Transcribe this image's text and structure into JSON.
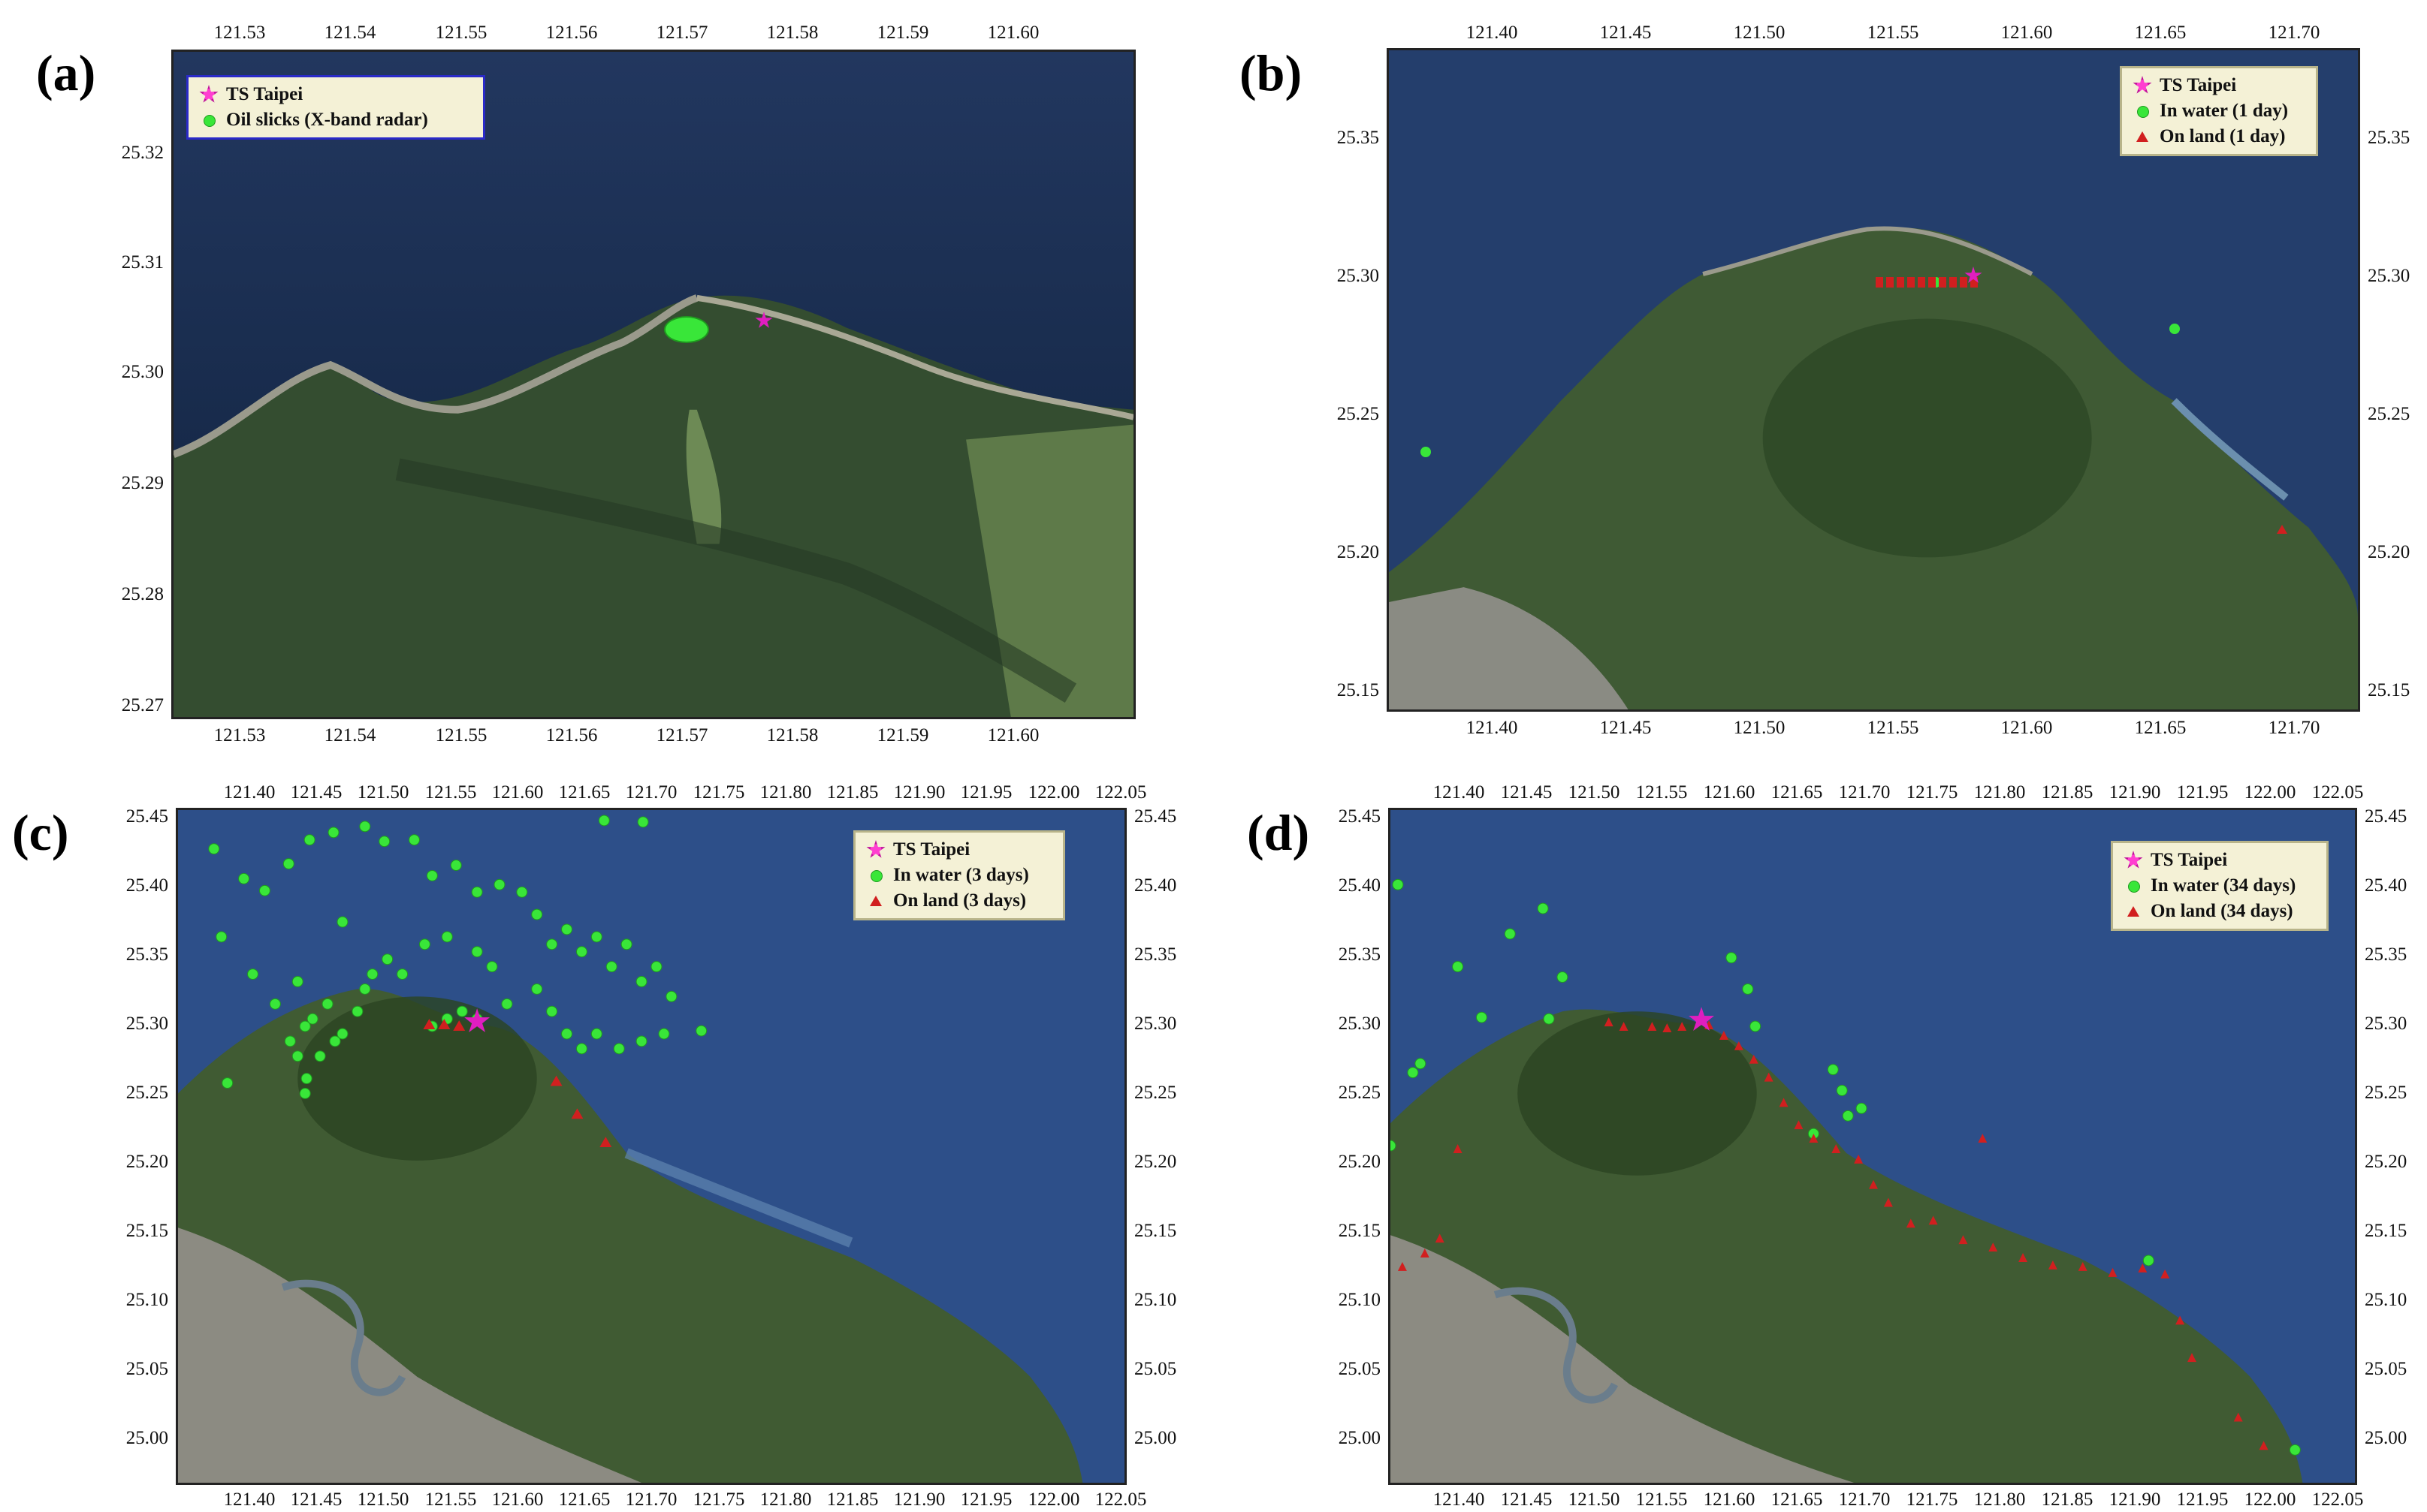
{
  "colors": {
    "ocean_deep": "#1c2f55",
    "ocean": "#2f4f86",
    "land_dark": "#2f4a2c",
    "land": "#4f6e3d",
    "urban": "#8f8f86",
    "oil_slick": "#39e639",
    "ship": "#e01ec0",
    "on_land_marker": "#d11f1f",
    "legend_bg": "#f4f1d6"
  },
  "icons": {
    "ship": "magenta-star-icon",
    "in_water": "green-dot-icon",
    "on_land": "red-triangle-icon"
  },
  "panels": [
    {
      "id": "a",
      "label": "(a)",
      "x_ticks": [
        "121.53",
        "121.54",
        "121.55",
        "121.56",
        "121.57",
        "121.58",
        "121.59",
        "121.60"
      ],
      "y_ticks_left": [
        "25.32",
        "25.31",
        "25.30",
        "25.29",
        "25.28",
        "25.27"
      ],
      "y_ticks_right": [],
      "legend": [
        {
          "icon": "ship",
          "label": "TS Taipei"
        },
        {
          "icon": "in_water",
          "label": "Oil slicks (X-band radar)"
        }
      ]
    },
    {
      "id": "b",
      "label": "(b)",
      "x_ticks": [
        "121.40",
        "121.45",
        "121.50",
        "121.55",
        "121.60",
        "121.65",
        "121.70"
      ],
      "y_ticks_left": [
        "25.35",
        "25.30",
        "25.25",
        "25.20",
        "25.15"
      ],
      "y_ticks_right": [
        "25.35",
        "25.30",
        "25.25",
        "25.20",
        "25.15"
      ],
      "legend": [
        {
          "icon": "ship",
          "label": "TS Taipei"
        },
        {
          "icon": "in_water",
          "label": "In water (1 day)"
        },
        {
          "icon": "on_land",
          "label": "On land (1 day)"
        }
      ]
    },
    {
      "id": "c",
      "label": "(c)",
      "x_ticks": [
        "121.40",
        "121.45",
        "121.50",
        "121.55",
        "121.60",
        "121.65",
        "121.70",
        "121.75",
        "121.80",
        "121.85",
        "121.90",
        "121.95",
        "122.00",
        "122.05"
      ],
      "y_ticks_left": [
        "25.45",
        "25.40",
        "25.35",
        "25.30",
        "25.25",
        "25.20",
        "25.15",
        "25.10",
        "25.05",
        "25.00"
      ],
      "y_ticks_right": [
        "25.45",
        "25.40",
        "25.35",
        "25.30",
        "25.25",
        "25.20",
        "25.15",
        "25.10",
        "25.05",
        "25.00"
      ],
      "legend": [
        {
          "icon": "ship",
          "label": "TS Taipei"
        },
        {
          "icon": "in_water",
          "label": "In water (3 days)"
        },
        {
          "icon": "on_land",
          "label": "On land (3 days)"
        }
      ]
    },
    {
      "id": "d",
      "label": "(d)",
      "x_ticks": [
        "121.40",
        "121.45",
        "121.50",
        "121.55",
        "121.60",
        "121.65",
        "121.70",
        "121.75",
        "121.80",
        "121.85",
        "121.90",
        "121.95",
        "122.00",
        "122.05"
      ],
      "y_ticks_left": [
        "25.45",
        "25.40",
        "25.35",
        "25.30",
        "25.25",
        "25.20",
        "25.15",
        "25.10",
        "25.05",
        "25.00"
      ],
      "y_ticks_right": [
        "25.45",
        "25.40",
        "25.35",
        "25.30",
        "25.25",
        "25.20",
        "25.15",
        "25.10",
        "25.05",
        "25.00"
      ],
      "legend": [
        {
          "icon": "ship",
          "label": "TS Taipei"
        },
        {
          "icon": "in_water",
          "label": "In water (34 days)"
        },
        {
          "icon": "on_land",
          "label": "On land (34 days)"
        }
      ]
    }
  ]
}
